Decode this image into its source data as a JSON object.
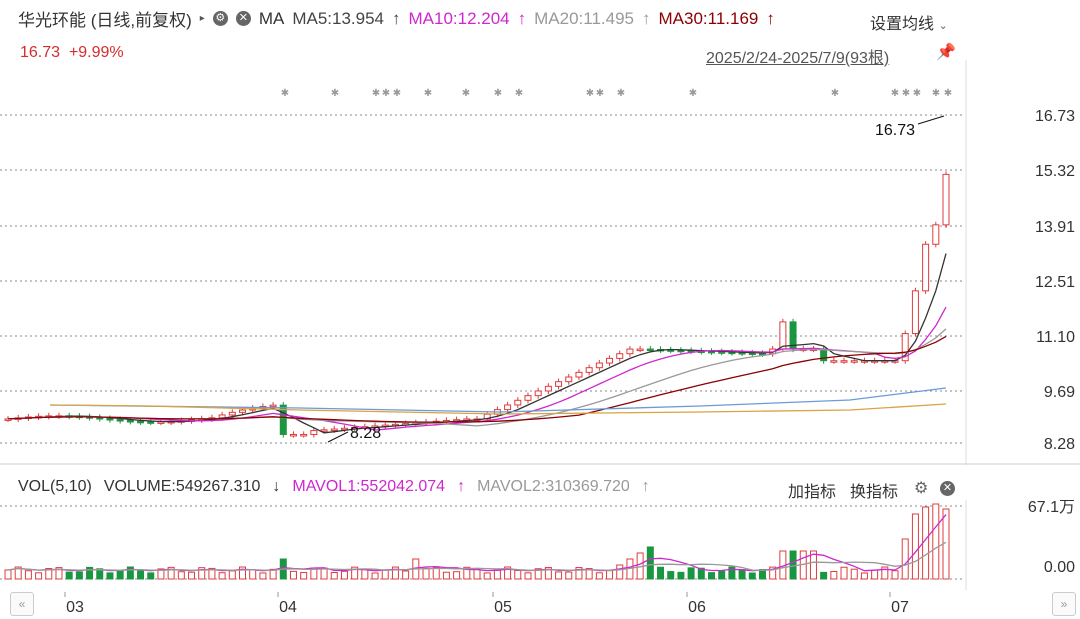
{
  "header": {
    "title": "华光环能 (日线,前复权)",
    "ma_label": "MA",
    "ma5": "MA5:13.954",
    "ma10": "MA10:12.204",
    "ma20": "MA20:11.495",
    "ma30": "MA30:11.169",
    "setting": "设置均线",
    "price": "16.73",
    "change": "+9.99%",
    "date_range": "2025/2/24-2025/7/9(93根)"
  },
  "volume_panel": {
    "vol_label": "VOL(5,10)",
    "volume": "VOLUME:549267.310",
    "mavol1": "MAVOL1:552042.074",
    "mavol2": "MAVOL2:310369.720",
    "add_indicator": "加指标",
    "switch_indicator": "换指标",
    "y_top": "67.1万",
    "y_zero": "0.00"
  },
  "price_axis": [
    "16.73",
    "15.32",
    "13.91",
    "12.51",
    "11.10",
    "9.69",
    "8.28"
  ],
  "x_axis": [
    "03",
    "04",
    "05",
    "06",
    "07"
  ],
  "annotations": {
    "high": "16.73",
    "low": "8.28"
  },
  "colors": {
    "up": "#e03b3b",
    "down": "#1a9641",
    "ma5": "#333333",
    "ma10": "#d026d0",
    "ma20": "#999999",
    "ma30": "#8b0000"
  },
  "icons": {
    "gear": "gear-icon",
    "close": "close-icon",
    "pin": "pin-icon",
    "nav_left": "double-left-icon",
    "nav_right": "double-right-icon"
  }
}
